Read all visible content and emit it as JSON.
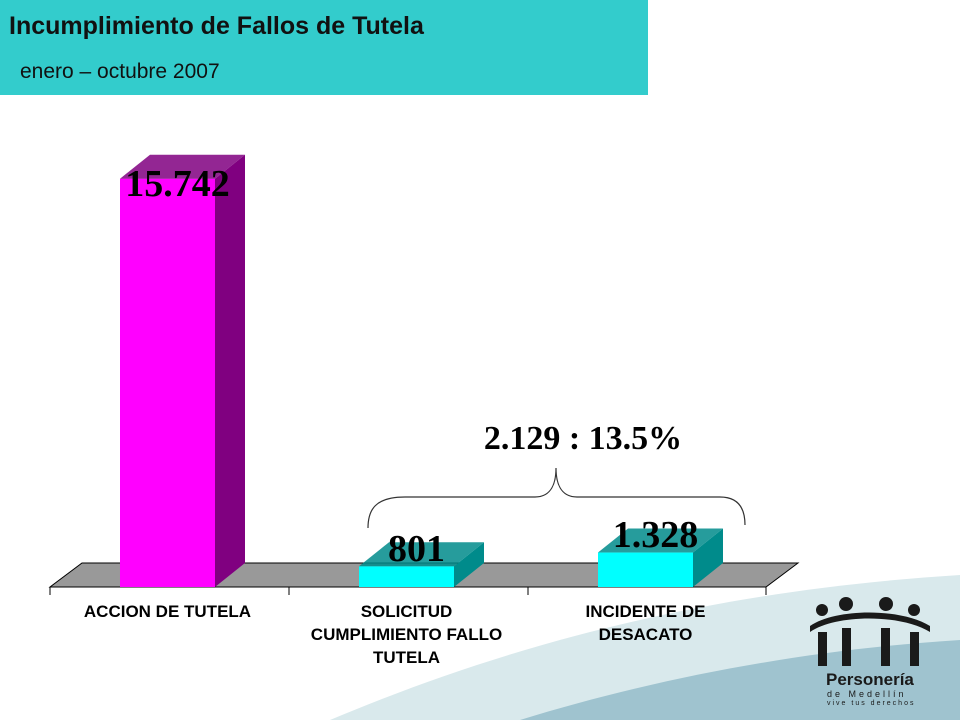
{
  "header": {
    "title": "Incumplimiento de Fallos de Tutela",
    "subtitle": "enero – octubre 2007"
  },
  "chart_data": {
    "type": "bar",
    "title": "",
    "xlabel": "",
    "ylabel": "",
    "categories": [
      [
        "ACCION DE TUTELA"
      ],
      [
        "SOLICITUD",
        "CUMPLIMIENTO FALLO",
        "TUTELA"
      ],
      [
        "INCIDENTE DE",
        "DESACATO"
      ]
    ],
    "values": [
      15742,
      801,
      1328
    ],
    "data_labels": [
      "15.742",
      "801",
      "1.328"
    ],
    "bar_colors": [
      "#ff00ff",
      "#00ffff",
      "#00ffff"
    ],
    "bar_side_colors": [
      "#800080",
      "#008b8b",
      "#008b8b"
    ],
    "ylim": [
      0,
      16000
    ],
    "grid": false,
    "legend": false,
    "annotation": "2.129 : 13.5%"
  },
  "logo": {
    "brand_line1": "Personería",
    "brand_line2": "de Medellín",
    "slogan": "vive tus derechos",
    "accent": "#1a1a1a"
  },
  "footer_colors": [
    "#d9e9ec",
    "#9fc3cf"
  ]
}
